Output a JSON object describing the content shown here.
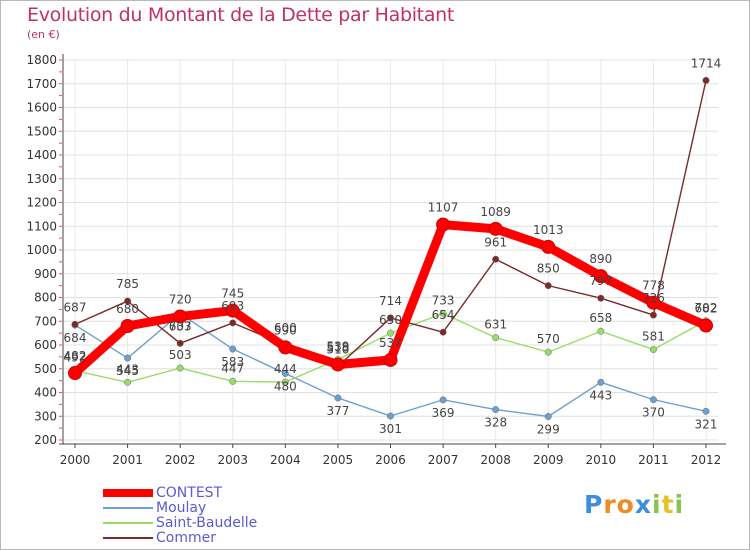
{
  "title": "Evolution du Montant de la Dette par Habitant",
  "subtitle": "(en €)",
  "logo": {
    "letters": [
      "P",
      "r",
      "o",
      "x",
      "i",
      "t",
      "i"
    ],
    "colors": [
      "#3f8fd8",
      "#f08a24",
      "#f08a24",
      "#3f8fd8",
      "#8bc34a",
      "#e6c229",
      "#8bc34a"
    ]
  },
  "chart_data": {
    "type": "line",
    "title": "Evolution du Montant de la Dette par Habitant",
    "ylabel": "(en €)",
    "xlabel": "",
    "ylim": [
      200,
      1800
    ],
    "yticks": [
      200,
      300,
      400,
      500,
      600,
      700,
      800,
      900,
      1000,
      1100,
      1200,
      1300,
      1400,
      1500,
      1600,
      1700,
      1800
    ],
    "grid": true,
    "legend_position": "bottom-left",
    "x": [
      "2000",
      "2001",
      "2002",
      "2003",
      "2004",
      "2005",
      "2006",
      "2007",
      "2008",
      "2009",
      "2010",
      "2011",
      "2012"
    ],
    "series": [
      {
        "name": "CONTEST",
        "color": "#ff0000",
        "values": [
          482,
          680,
          720,
          745,
          590,
          518,
          537,
          1107,
          1089,
          1013,
          890,
          778,
          682
        ]
      },
      {
        "name": "Moulay",
        "color": "#6ca0d0",
        "values": [
          684,
          545,
          733,
          583,
          480,
          377,
          301,
          369,
          328,
          299,
          443,
          370,
          321
        ]
      },
      {
        "name": "Saint-Baudelle",
        "color": "#99dd66",
        "values": [
          492,
          443,
          503,
          447,
          444,
          539,
          650,
          733,
          631,
          570,
          658,
          581,
          702
        ]
      },
      {
        "name": "Commer",
        "color": "#7a2a2a",
        "values": [
          687,
          785,
          607,
          693,
          600,
          510,
          714,
          654,
          961,
          850,
          797,
          726,
          1714
        ]
      }
    ],
    "point_labels": {
      "CONTEST": [
        "482",
        "680",
        "720",
        "745",
        "590",
        "518",
        "537",
        "1107",
        "1089",
        "1013",
        "890",
        "778",
        "682"
      ],
      "Moulay": [
        "684",
        "545",
        "733",
        "583",
        "480",
        "377",
        "301",
        "369",
        "328",
        "299",
        "443",
        "370",
        "321"
      ],
      "Saint-Baudelle": [
        "492",
        "443",
        "503",
        "447",
        "444",
        "539",
        "650",
        "733",
        "631",
        "570",
        "658",
        "581",
        "702"
      ],
      "Commer": [
        "687",
        "785",
        "607",
        "693",
        "600",
        "510",
        "714",
        "654",
        "961",
        "850",
        "797",
        "726",
        "1714"
      ]
    }
  }
}
